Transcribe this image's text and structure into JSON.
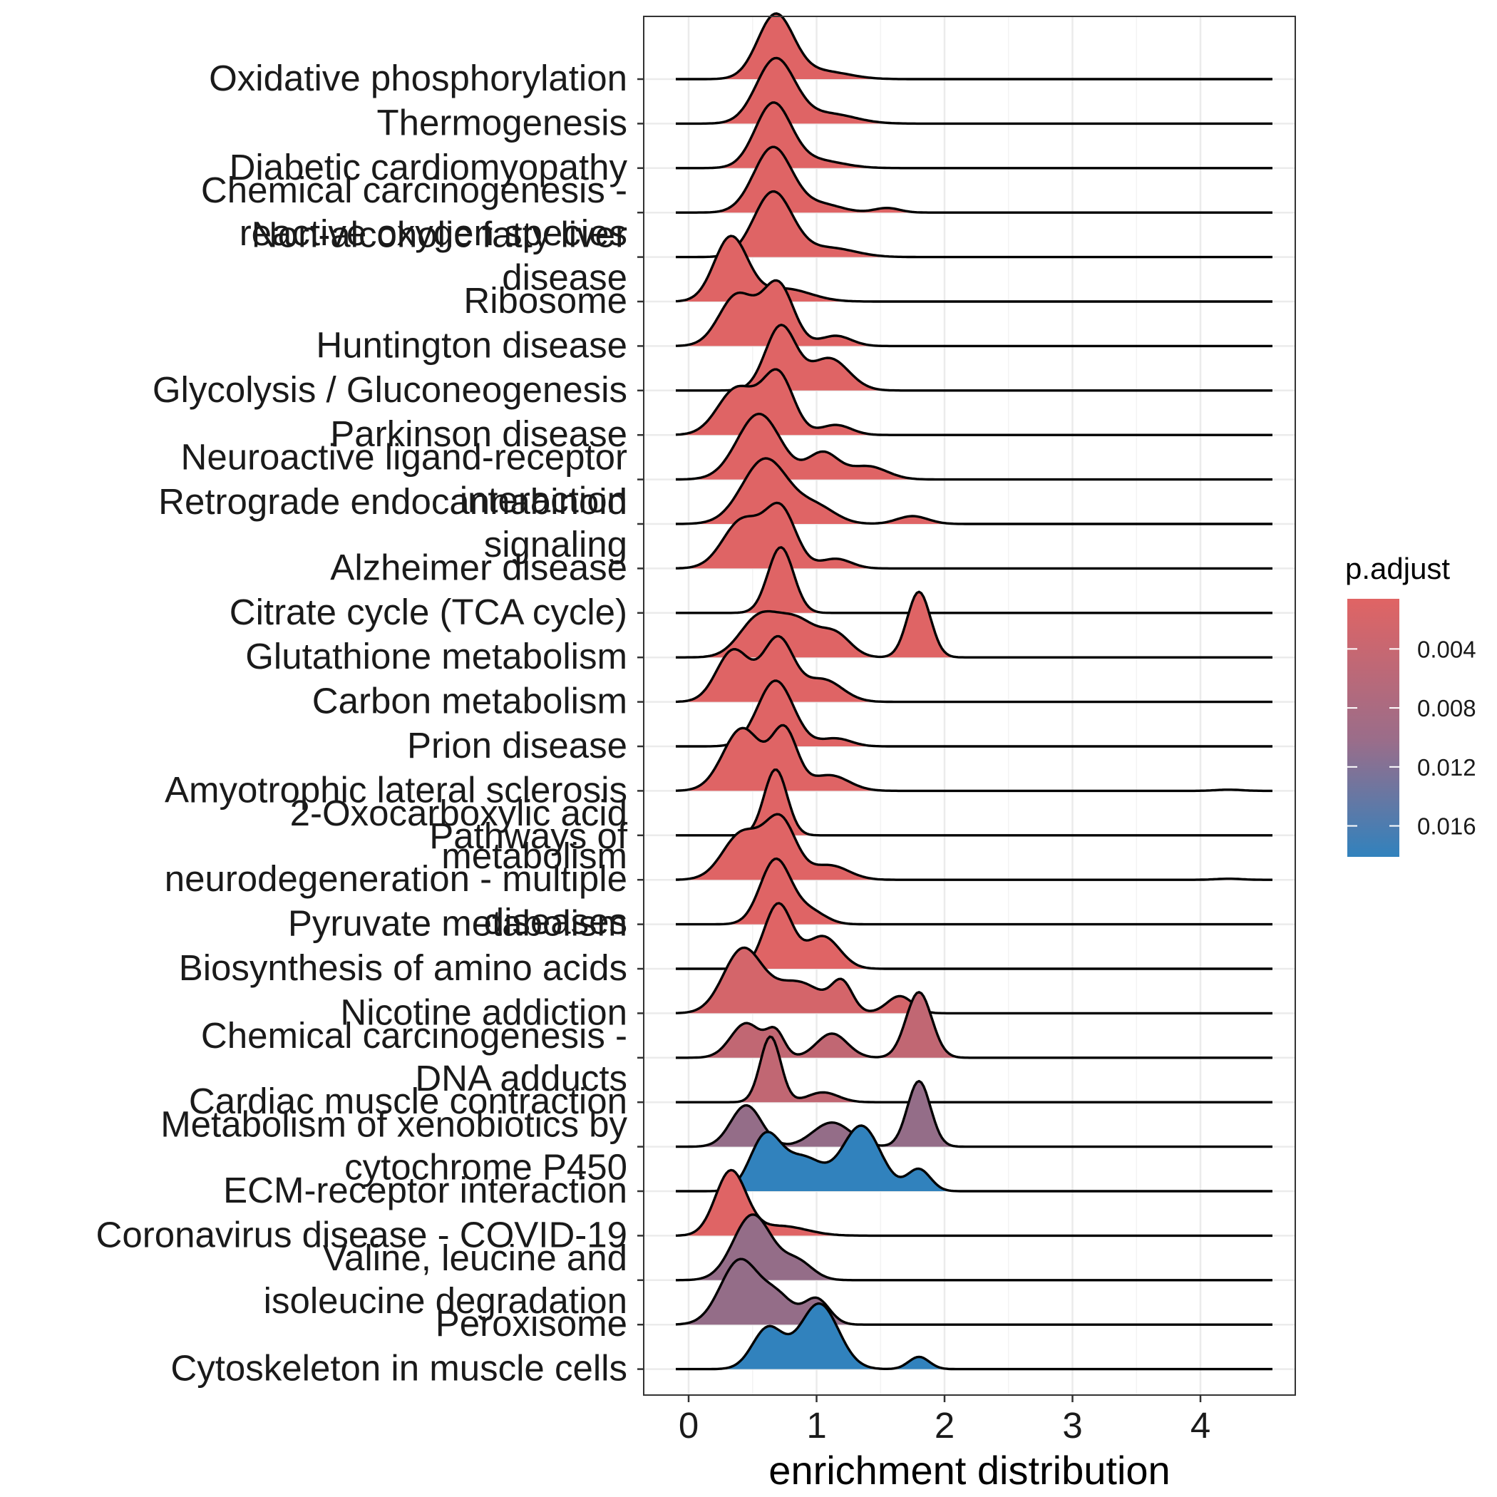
{
  "chart_data": {
    "type": "ridgeline",
    "xlabel": "enrichment distribution",
    "ylabel": "",
    "xlim": [
      -0.1,
      4.75
    ],
    "xticks": [
      0,
      1,
      2,
      3,
      4
    ],
    "grid": true,
    "legend": {
      "title": "p.adjust",
      "position": "right",
      "type": "gradient",
      "range": [
        0.0006,
        0.0181
      ],
      "ticks": [
        {
          "value": 0.004,
          "label": "0.004"
        },
        {
          "value": 0.008,
          "label": "0.008"
        },
        {
          "value": 0.012,
          "label": "0.012"
        },
        {
          "value": 0.016,
          "label": "0.016"
        }
      ],
      "colors": {
        "low": "#e06464",
        "mid": "#a8697e",
        "high": "#3182bd"
      }
    },
    "series": [
      {
        "name": "Oxidative phosphorylation",
        "label_lines": [
          "Oxidative phosphorylation"
        ],
        "p_adjust": 0.0008,
        "peaks": [
          [
            0.68,
            0.14,
            1.0
          ],
          [
            1.05,
            0.2,
            0.12
          ]
        ]
      },
      {
        "name": "Thermogenesis",
        "label_lines": [
          "Thermogenesis"
        ],
        "p_adjust": 0.0008,
        "peaks": [
          [
            0.68,
            0.15,
            1.0
          ],
          [
            1.1,
            0.2,
            0.15
          ]
        ]
      },
      {
        "name": "Diabetic cardiomyopathy",
        "label_lines": [
          "Diabetic cardiomyopathy"
        ],
        "p_adjust": 0.0008,
        "peaks": [
          [
            0.66,
            0.14,
            1.0
          ],
          [
            1.0,
            0.2,
            0.12
          ]
        ]
      },
      {
        "name": "Chemical carcinogenesis - reactive oxygen species",
        "label_lines": [
          "Chemical carcinogenesis -",
          "reactive oxygen species"
        ],
        "p_adjust": 0.0008,
        "peaks": [
          [
            0.66,
            0.15,
            1.0
          ],
          [
            1.05,
            0.15,
            0.12
          ],
          [
            1.55,
            0.1,
            0.07
          ]
        ]
      },
      {
        "name": "Non-alcoholic fatty liver disease",
        "label_lines": [
          "Non-alcoholic fatty liver",
          "disease"
        ],
        "p_adjust": 0.0008,
        "peaks": [
          [
            0.66,
            0.15,
            1.0
          ],
          [
            1.1,
            0.2,
            0.14
          ]
        ]
      },
      {
        "name": "Ribosome",
        "label_lines": [
          "Ribosome"
        ],
        "p_adjust": 0.0008,
        "peaks": [
          [
            0.33,
            0.13,
            1.0
          ],
          [
            0.75,
            0.2,
            0.2
          ]
        ]
      },
      {
        "name": "Huntington disease",
        "label_lines": [
          "Huntington disease"
        ],
        "p_adjust": 0.0008,
        "peaks": [
          [
            0.38,
            0.14,
            0.75
          ],
          [
            0.7,
            0.12,
            0.9
          ],
          [
            1.15,
            0.12,
            0.15
          ]
        ]
      },
      {
        "name": "Glycolysis / Gluconeogenesis",
        "label_lines": [
          "Glycolysis / Gluconeogenesis"
        ],
        "p_adjust": 0.0008,
        "peaks": [
          [
            0.72,
            0.12,
            1.0
          ],
          [
            1.1,
            0.15,
            0.5
          ]
        ]
      },
      {
        "name": "Parkinson disease",
        "label_lines": [
          "Parkinson disease"
        ],
        "p_adjust": 0.0008,
        "peaks": [
          [
            0.38,
            0.15,
            0.7
          ],
          [
            0.7,
            0.12,
            0.9
          ],
          [
            1.15,
            0.12,
            0.15
          ]
        ]
      },
      {
        "name": "Neuroactive ligand-receptor interaction",
        "label_lines": [
          "Neuroactive ligand-receptor",
          "interaction"
        ],
        "p_adjust": 0.0008,
        "peaks": [
          [
            0.55,
            0.17,
            1.0
          ],
          [
            1.05,
            0.12,
            0.4
          ],
          [
            1.4,
            0.15,
            0.2
          ]
        ]
      },
      {
        "name": "Retrograde endocannabinoid signaling",
        "label_lines": [
          "Retrograde endocannabinoid",
          "signaling"
        ],
        "p_adjust": 0.0008,
        "peaks": [
          [
            0.6,
            0.18,
            1.0
          ],
          [
            1.0,
            0.15,
            0.25
          ],
          [
            1.75,
            0.12,
            0.12
          ]
        ]
      },
      {
        "name": "Alzheimer disease",
        "label_lines": [
          "Alzheimer disease"
        ],
        "p_adjust": 0.0008,
        "peaks": [
          [
            0.42,
            0.15,
            0.75
          ],
          [
            0.72,
            0.12,
            0.9
          ],
          [
            1.15,
            0.12,
            0.15
          ]
        ]
      },
      {
        "name": "Citrate cycle (TCA cycle)",
        "label_lines": [
          "Citrate cycle (TCA cycle)"
        ],
        "p_adjust": 0.0008,
        "peaks": [
          [
            0.72,
            0.1,
            1.0
          ]
        ]
      },
      {
        "name": "Glutathione metabolism",
        "label_lines": [
          "Glutathione metabolism"
        ],
        "p_adjust": 0.0008,
        "peaks": [
          [
            0.55,
            0.15,
            0.45
          ],
          [
            0.85,
            0.15,
            0.4
          ],
          [
            1.15,
            0.12,
            0.25
          ],
          [
            1.8,
            0.09,
            0.75
          ]
        ]
      },
      {
        "name": "Carbon metabolism",
        "label_lines": [
          "Carbon metabolism"
        ],
        "p_adjust": 0.0008,
        "peaks": [
          [
            0.35,
            0.13,
            0.7
          ],
          [
            0.7,
            0.12,
            0.85
          ],
          [
            1.05,
            0.15,
            0.3
          ]
        ]
      },
      {
        "name": "Prion disease",
        "label_lines": [
          "Prion disease"
        ],
        "p_adjust": 0.0008,
        "peaks": [
          [
            0.68,
            0.14,
            1.0
          ],
          [
            1.15,
            0.12,
            0.12
          ]
        ]
      },
      {
        "name": "Amyotrophic lateral sclerosis",
        "label_lines": [
          "Amyotrophic lateral sclerosis"
        ],
        "p_adjust": 0.0008,
        "peaks": [
          [
            0.42,
            0.15,
            0.8
          ],
          [
            0.75,
            0.1,
            0.75
          ],
          [
            1.1,
            0.15,
            0.2
          ],
          [
            4.22,
            0.1,
            0.015
          ]
        ]
      },
      {
        "name": "2-Oxocarboxylic acid metabolism",
        "label_lines": [
          "2-Oxocarboxylic acid",
          "metabolism"
        ],
        "p_adjust": 0.0008,
        "peaks": [
          [
            0.68,
            0.09,
            1.0
          ]
        ]
      },
      {
        "name": "Pathways of neurodegeneration - multiple diseases",
        "label_lines": [
          "Pathways of",
          "neurodegeneration - multiple",
          "diseases"
        ],
        "p_adjust": 0.0008,
        "peaks": [
          [
            0.42,
            0.15,
            0.65
          ],
          [
            0.72,
            0.12,
            0.8
          ],
          [
            1.1,
            0.15,
            0.2
          ],
          [
            4.22,
            0.1,
            0.015
          ]
        ]
      },
      {
        "name": "Pyruvate metabolism",
        "label_lines": [
          "Pyruvate metabolism"
        ],
        "p_adjust": 0.0008,
        "peaks": [
          [
            0.68,
            0.12,
            1.0
          ],
          [
            0.95,
            0.12,
            0.2
          ]
        ]
      },
      {
        "name": "Biosynthesis of amino acids",
        "label_lines": [
          "Biosynthesis of amino acids"
        ],
        "p_adjust": 0.0008,
        "peaks": [
          [
            0.7,
            0.11,
            1.0
          ],
          [
            1.05,
            0.13,
            0.5
          ]
        ]
      },
      {
        "name": "Nicotine addiction",
        "label_lines": [
          "Nicotine addiction"
        ],
        "p_adjust": 0.0025,
        "peaks": [
          [
            0.42,
            0.15,
            0.8
          ],
          [
            0.85,
            0.2,
            0.4
          ],
          [
            1.2,
            0.08,
            0.35
          ],
          [
            1.65,
            0.1,
            0.22
          ]
        ]
      },
      {
        "name": "Chemical carcinogenesis - DNA adducts",
        "label_lines": [
          "Chemical carcinogenesis -",
          "DNA adducts"
        ],
        "p_adjust": 0.0055,
        "peaks": [
          [
            0.45,
            0.12,
            0.5
          ],
          [
            0.68,
            0.07,
            0.35
          ],
          [
            1.12,
            0.12,
            0.35
          ],
          [
            1.8,
            0.1,
            0.95
          ]
        ]
      },
      {
        "name": "Cardiac muscle contraction",
        "label_lines": [
          "Cardiac muscle contraction"
        ],
        "p_adjust": 0.0055,
        "peaks": [
          [
            0.64,
            0.08,
            1.0
          ],
          [
            1.05,
            0.12,
            0.15
          ]
        ]
      },
      {
        "name": "Metabolism of xenobiotics by cytochrome P450",
        "label_lines": [
          "Metabolism of xenobiotics by",
          "cytochrome P450"
        ],
        "p_adjust": 0.0108,
        "peaks": [
          [
            0.45,
            0.12,
            0.6
          ],
          [
            1.12,
            0.15,
            0.35
          ],
          [
            1.8,
            0.09,
            0.95
          ]
        ]
      },
      {
        "name": "ECM-receptor interaction",
        "label_lines": [
          "ECM-receptor interaction"
        ],
        "p_adjust": 0.0181,
        "peaks": [
          [
            0.6,
            0.12,
            0.5
          ],
          [
            0.9,
            0.15,
            0.3
          ],
          [
            1.35,
            0.15,
            0.6
          ],
          [
            1.8,
            0.09,
            0.2
          ]
        ]
      },
      {
        "name": "Coronavirus disease - COVID-19",
        "label_lines": [
          "Coronavirus disease - COVID-19"
        ],
        "p_adjust": 0.0008,
        "peaks": [
          [
            0.33,
            0.12,
            1.0
          ],
          [
            0.72,
            0.2,
            0.15
          ]
        ]
      },
      {
        "name": "Valine, leucine and isoleucine degradation",
        "label_lines": [
          "Valine, leucine and",
          "isoleucine degradation"
        ],
        "p_adjust": 0.0108,
        "peaks": [
          [
            0.5,
            0.15,
            0.9
          ],
          [
            0.85,
            0.12,
            0.25
          ]
        ]
      },
      {
        "name": "Peroxisome",
        "label_lines": [
          "Peroxisome"
        ],
        "p_adjust": 0.0108,
        "peaks": [
          [
            0.4,
            0.15,
            0.75
          ],
          [
            0.7,
            0.12,
            0.3
          ],
          [
            1.0,
            0.1,
            0.3
          ]
        ]
      },
      {
        "name": "Cytoskeleton in muscle cells",
        "label_lines": [
          "Cytoskeleton in muscle cells"
        ],
        "p_adjust": 0.0181,
        "peaks": [
          [
            0.62,
            0.12,
            0.5
          ],
          [
            1.02,
            0.15,
            0.8
          ],
          [
            1.8,
            0.08,
            0.15
          ]
        ]
      }
    ]
  }
}
